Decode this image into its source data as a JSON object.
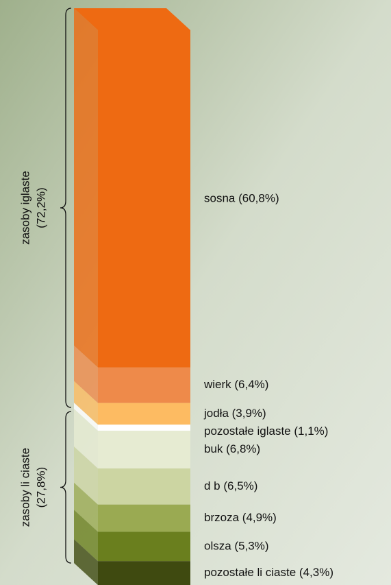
{
  "chart_data": {
    "type": "stacked_bar_3d",
    "series": [
      {
        "name": "sosna (60,8%)",
        "color": "#ee6a12",
        "values": [
          60.8
        ]
      },
      {
        "name": "wierk (6,4%)",
        "color": "#ee8a4a",
        "values": [
          6.4
        ]
      },
      {
        "name": "jodła (3,9%)",
        "color": "#fdbb62",
        "values": [
          3.9
        ]
      },
      {
        "name": "pozostałe iglaste (1,1%)",
        "color": "#ffffff",
        "values": [
          1.1
        ]
      },
      {
        "name": "buk (6,8%)",
        "color": "#e6ebd2",
        "values": [
          6.8
        ]
      },
      {
        "name": "d b (6,5%)",
        "color": "#ccd5a2",
        "values": [
          6.5
        ]
      },
      {
        "name": "brzoza (4,9%)",
        "color": "#9aaa52",
        "values": [
          4.9
        ]
      },
      {
        "name": "olsza (5,3%)",
        "color": "#6a7f1e",
        "values": [
          5.3
        ]
      },
      {
        "name": "pozostałe li ciaste (4,3%)",
        "color": "#3f4a10",
        "values": [
          4.3
        ]
      }
    ],
    "groups": [
      {
        "label": [
          "zasoby iglaste",
          "(72,2%)"
        ],
        "value": 72.2
      },
      {
        "label": [
          "zasoby li ciaste",
          "(27,8%)"
        ],
        "value": 27.8
      }
    ],
    "ylim": [
      0,
      100
    ]
  }
}
